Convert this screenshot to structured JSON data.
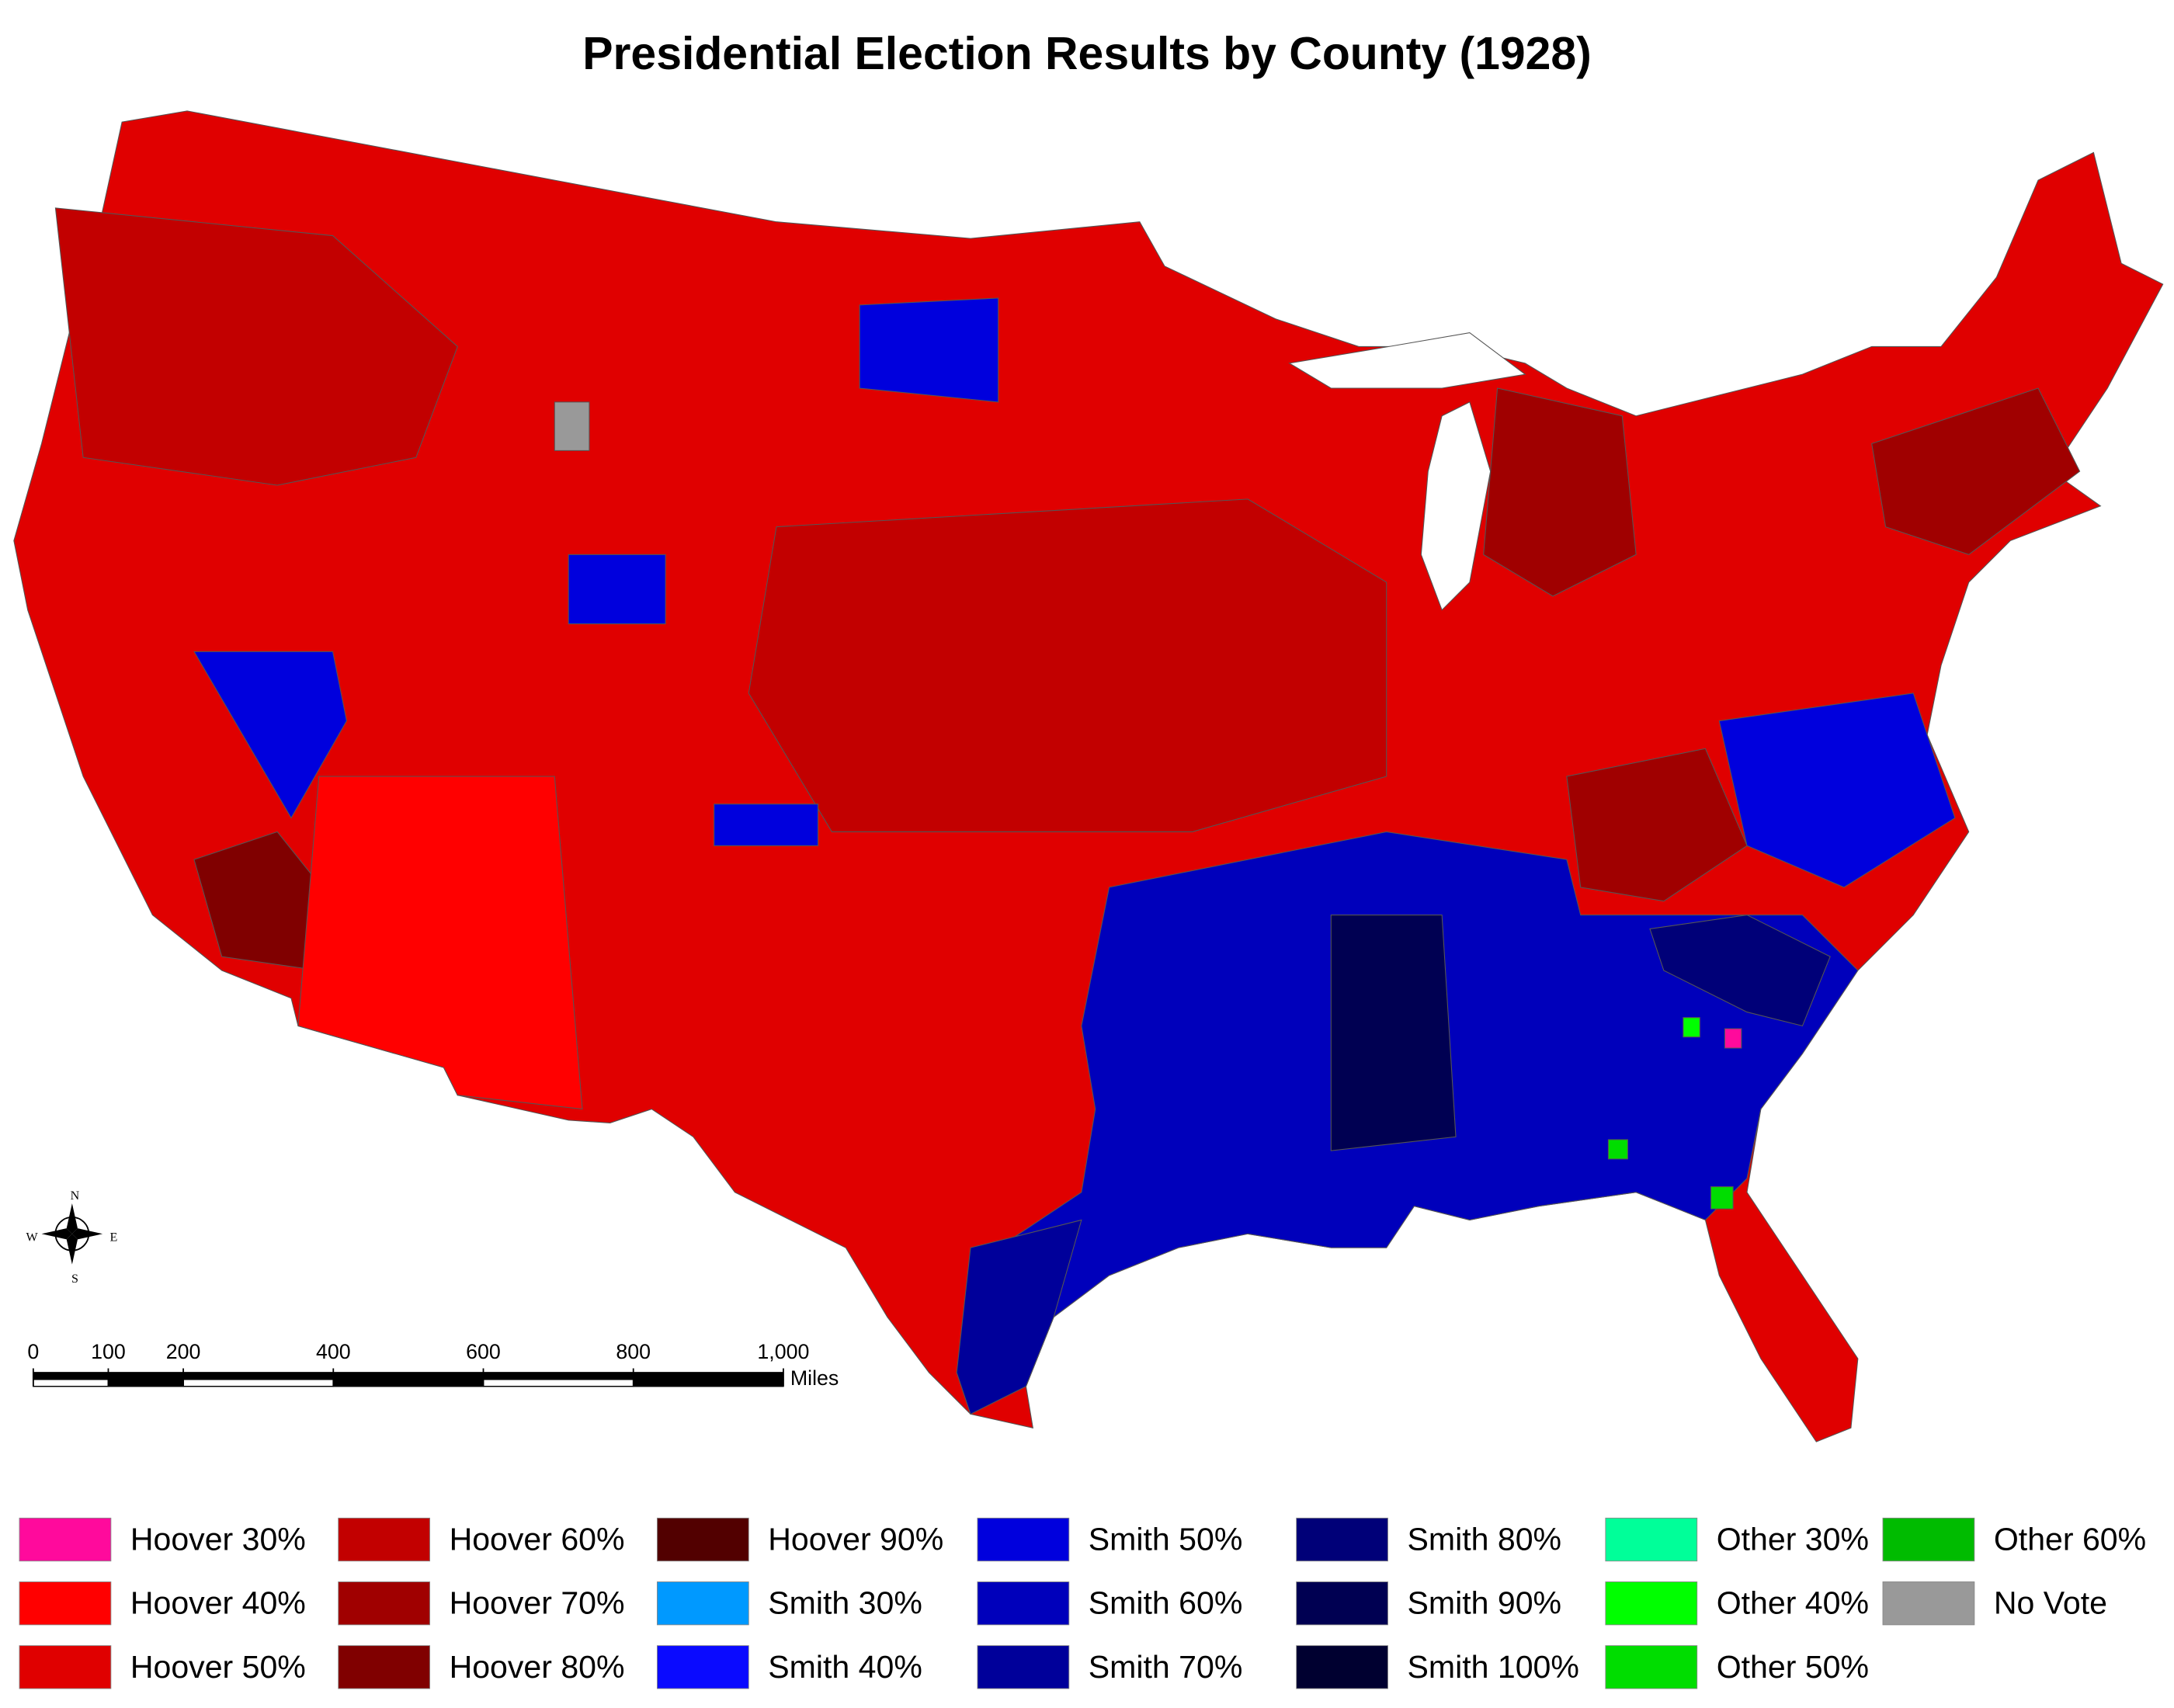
{
  "title": "Presidential Election Results by County (1928)",
  "legend": [
    {
      "label": "Hoover 30%",
      "color": "#ff0a9c"
    },
    {
      "label": "Hoover 40%",
      "color": "#ff0000"
    },
    {
      "label": "Hoover 50%",
      "color": "#e00000"
    },
    {
      "label": "Hoover 60%",
      "color": "#c20000"
    },
    {
      "label": "Hoover 70%",
      "color": "#a00000"
    },
    {
      "label": "Hoover 80%",
      "color": "#800000"
    },
    {
      "label": "Hoover 90%",
      "color": "#520000"
    },
    {
      "label": "Smith 30%",
      "color": "#0099ff"
    },
    {
      "label": "Smith 40%",
      "color": "#0a0aff"
    },
    {
      "label": "Smith 50%",
      "color": "#0000dd"
    },
    {
      "label": "Smith 60%",
      "color": "#0000bb"
    },
    {
      "label": "Smith 70%",
      "color": "#00009a"
    },
    {
      "label": "Smith 80%",
      "color": "#000078"
    },
    {
      "label": "Smith 90%",
      "color": "#000052"
    },
    {
      "label": "Smith 100%",
      "color": "#000030"
    },
    {
      "label": "Other 30%",
      "color": "#00ff99"
    },
    {
      "label": "Other 40%",
      "color": "#00ff00"
    },
    {
      "label": "Other 50%",
      "color": "#00dd00"
    },
    {
      "label": "Other 60%",
      "color": "#00bb00"
    },
    {
      "label": "No Vote",
      "color": "#999999"
    }
  ],
  "scale_bar": {
    "ticks": [
      0,
      100,
      200,
      400,
      600,
      800,
      {
        "value": 1000,
        "label": "1,000"
      }
    ],
    "unit": "Miles"
  },
  "compass": {
    "north": "N",
    "south": "S",
    "east": "E",
    "west": "W"
  }
}
